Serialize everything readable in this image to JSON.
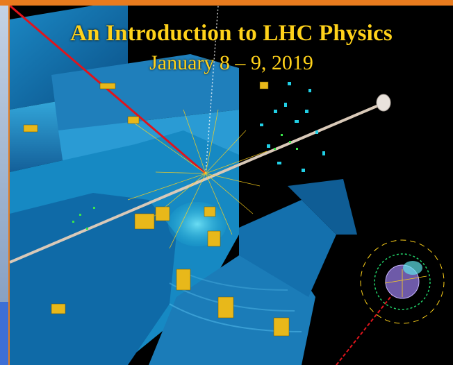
{
  "poster": {
    "title": "An Introduction to LHC Physics",
    "dates": "January 8 – 9, 2019"
  },
  "colors": {
    "title_text": "#ffd21a",
    "top_bar": "#e87b1e",
    "detector_blue": "#1d8fc8",
    "track_red": "#e0141c"
  },
  "icons": [
    "atlas-event-display",
    "particle-jets",
    "muon-track",
    "beam-pipe"
  ]
}
